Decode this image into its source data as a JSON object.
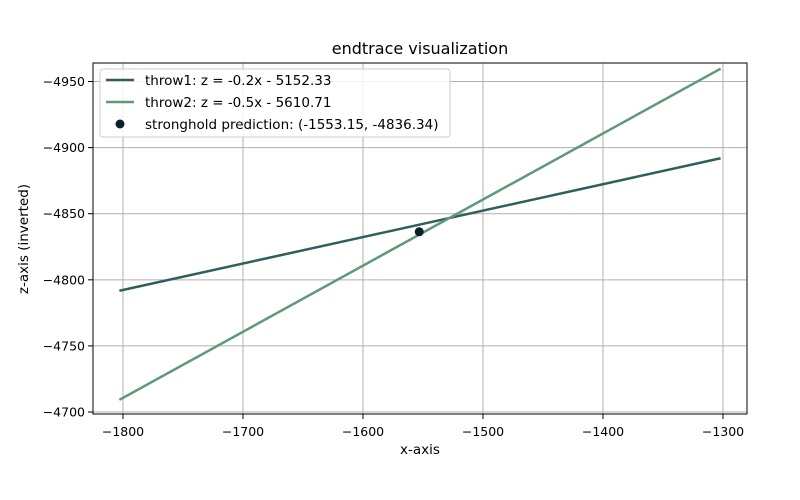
{
  "chart_data": {
    "type": "line",
    "title": "endtrace visualization",
    "xlabel": "x-axis",
    "ylabel": "z-axis (inverted)",
    "xlim": [
      -1825,
      -1280
    ],
    "ylim": [
      -4698.5,
      -4964
    ],
    "y_inverted": true,
    "x_ticks": [
      -1800,
      -1700,
      -1600,
      -1500,
      -1400,
      -1300
    ],
    "y_ticks": [
      -4700,
      -4750,
      -4800,
      -4850,
      -4900,
      -4950
    ],
    "x_tick_labels": [
      "−1800",
      "−1700",
      "−1600",
      "−1500",
      "−1400",
      "−1300"
    ],
    "y_tick_labels": [
      "−4700",
      "−4750",
      "−4800",
      "−4850",
      "−4900",
      "−4950"
    ],
    "grid": true,
    "legend_position": "top-left",
    "series": [
      {
        "name": "throw1: z = -0.2x - 5152.33",
        "slope": -0.2,
        "intercept": -5152.33,
        "x": [
          -1803,
          -1302
        ],
        "color": "#2f5f5c"
      },
      {
        "name": "throw2: z = -0.5x - 5610.71",
        "slope": -0.5,
        "intercept": -5610.71,
        "x": [
          -1803,
          -1302
        ],
        "color": "#5f9a78"
      }
    ],
    "points": [
      {
        "name": "stronghold prediction: (-1553.15, -4836.34)",
        "x": -1553.15,
        "z": -4836.34,
        "color": "#0b1f29"
      }
    ]
  }
}
